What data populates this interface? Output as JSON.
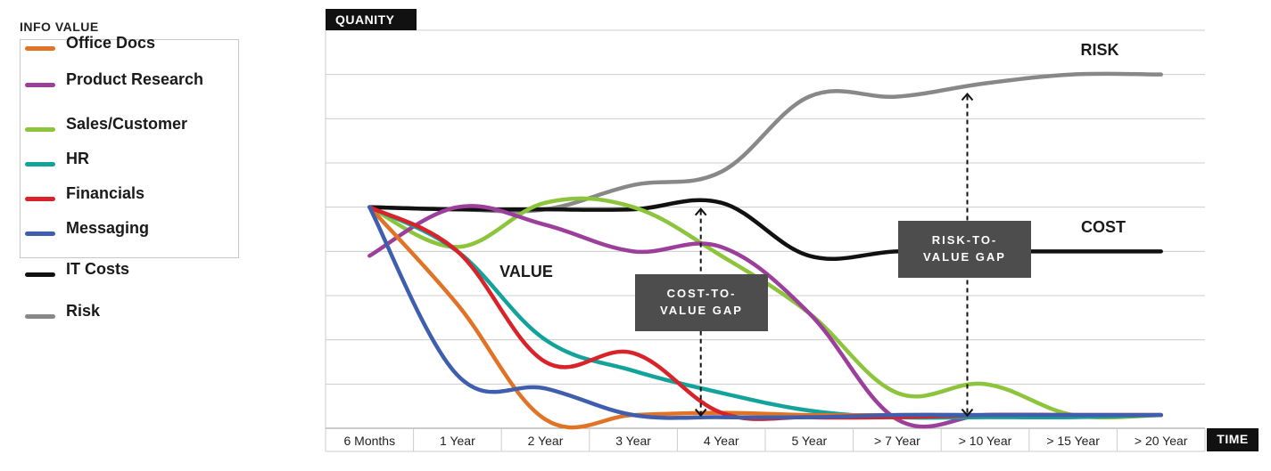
{
  "chart_data": {
    "type": "line",
    "legend_title": "INFO VALUE",
    "legend_position": "left",
    "y_axis_label": "QUANITY",
    "x_axis_label": "TIME",
    "categories": [
      "6 Months",
      "1 Year",
      "2 Year",
      "3 Year",
      "4 Year",
      "5 Year",
      "> 7 Year",
      "> 10 Year",
      "> 15 Year",
      "> 20 Year"
    ],
    "ylim": [
      0,
      9
    ],
    "grid": true,
    "series": [
      {
        "name": "Office Docs",
        "color": "#e07326",
        "values": [
          5.0,
          2.8,
          0.2,
          0.3,
          0.35,
          0.3,
          0.3,
          0.3,
          0.3,
          0.3
        ]
      },
      {
        "name": "Product Research",
        "color": "#9b3f9b",
        "values": [
          3.9,
          5.0,
          4.6,
          4.0,
          4.1,
          2.6,
          0.2,
          0.3,
          0.3,
          0.3
        ]
      },
      {
        "name": "Sales/Customer",
        "color": "#8cc43c",
        "values": [
          5.0,
          4.1,
          5.1,
          5.0,
          3.9,
          2.6,
          0.8,
          1.0,
          0.3,
          0.3
        ]
      },
      {
        "name": "HR",
        "color": "#14a39a",
        "values": [
          5.0,
          4.0,
          2.0,
          1.3,
          0.8,
          0.4,
          0.25,
          0.25,
          0.25,
          0.3
        ]
      },
      {
        "name": "Financials",
        "color": "#d8232a",
        "values": [
          5.0,
          4.0,
          1.5,
          1.7,
          0.35,
          0.25,
          0.25,
          0.3,
          0.3,
          0.3
        ]
      },
      {
        "name": "Messaging",
        "color": "#3f5fae",
        "values": [
          5.0,
          1.2,
          0.9,
          0.3,
          0.25,
          0.25,
          0.3,
          0.3,
          0.3,
          0.3
        ]
      },
      {
        "name": "IT Costs",
        "color": "#111111",
        "values": [
          5.0,
          4.95,
          4.95,
          4.95,
          5.1,
          3.9,
          4.0,
          4.0,
          4.0,
          4.0
        ]
      },
      {
        "name": "Risk",
        "color": "#888888",
        "values": [
          5.0,
          4.95,
          4.95,
          5.5,
          5.8,
          7.5,
          7.5,
          7.8,
          8.0,
          8.0
        ]
      }
    ],
    "annotations": [
      {
        "text": "RISK",
        "at_category": "> 15 Year",
        "at_value": 8.5
      },
      {
        "text": "COST",
        "at_category": "> 15 Year",
        "at_value": 4.5
      },
      {
        "text": "VALUE",
        "at_category": "2 Year",
        "at_value": 3.5
      },
      {
        "text": "COST-TO-",
        "text2": "VALUE GAP",
        "gap_category": "4 Year",
        "gap_from": 0.25,
        "gap_to": 5.0,
        "label_category": "4 Year",
        "label_value": 2.8
      },
      {
        "text": "RISK-TO-",
        "text2": "VALUE GAP",
        "gap_category": "> 10 Year",
        "gap_from": 0.25,
        "gap_to": 7.6,
        "label_category": "> 10 Year",
        "label_value": 4.0
      }
    ]
  }
}
